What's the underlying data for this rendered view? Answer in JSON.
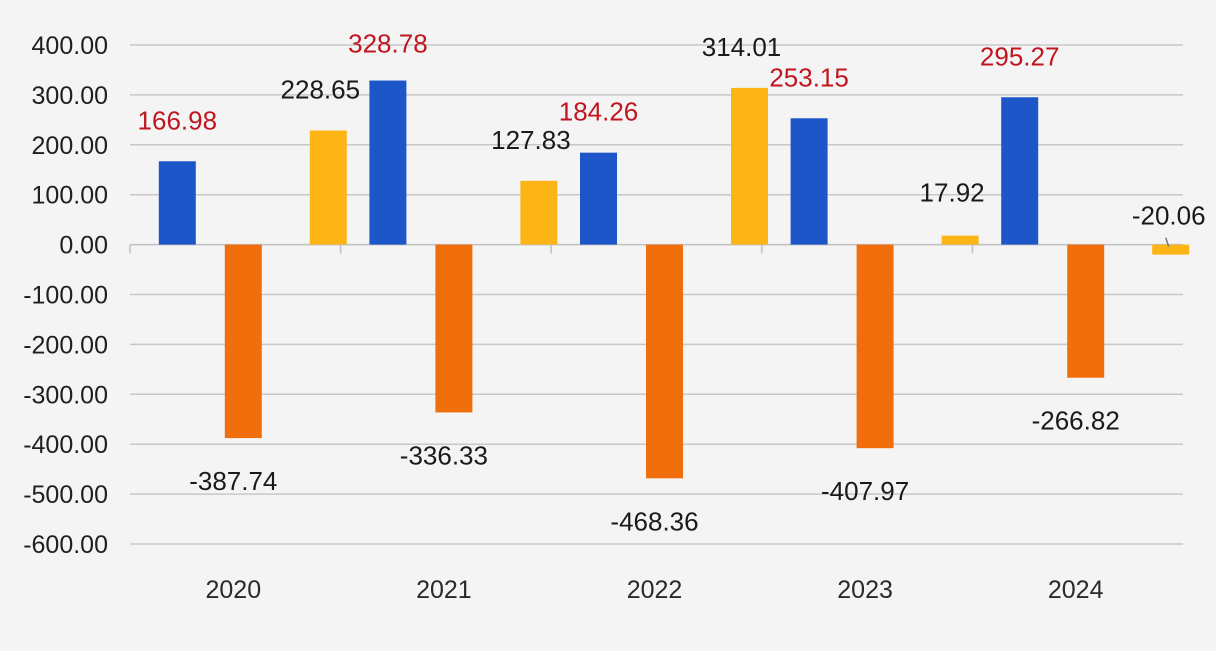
{
  "chart_data": {
    "type": "bar",
    "title": "",
    "xlabel": "",
    "ylabel": "",
    "categories": [
      "2020",
      "2021",
      "2022",
      "2023",
      "2024"
    ],
    "ylim": [
      -600,
      400
    ],
    "yticks": [
      400,
      300,
      200,
      100,
      0,
      -100,
      -200,
      -300,
      -400,
      -500,
      -600
    ],
    "ytick_labels": [
      "400.00",
      "300.00",
      "200.00",
      "100.00",
      "0.00",
      "-100.00",
      "-200.00",
      "-300.00",
      "-400.00",
      "-500.00",
      "-600.00"
    ],
    "grid": true,
    "legend": "none",
    "series": [
      {
        "name": "series-1",
        "color": "#1d56c9",
        "label_color": "#c0161f",
        "values": [
          166.98,
          328.78,
          184.26,
          253.15,
          295.27
        ],
        "value_labels": [
          "166.98",
          "328.78",
          "184.26",
          "253.15",
          "295.27"
        ]
      },
      {
        "name": "series-2",
        "color": "#f06e0c",
        "label_color": "#1a1a1a",
        "values": [
          -387.74,
          -336.33,
          -468.36,
          -407.97,
          -266.82
        ],
        "value_labels": [
          "-387.74",
          "-336.33",
          "-468.36",
          "-407.97",
          "-266.82"
        ]
      },
      {
        "name": "series-3",
        "color": "#fdb515",
        "label_color": "#1a1a1a",
        "values": [
          228.65,
          127.83,
          314.01,
          17.92,
          -20.06
        ],
        "value_labels": [
          "228.65",
          "127.83",
          "314.01",
          "17.92",
          "-20.06"
        ]
      }
    ]
  }
}
